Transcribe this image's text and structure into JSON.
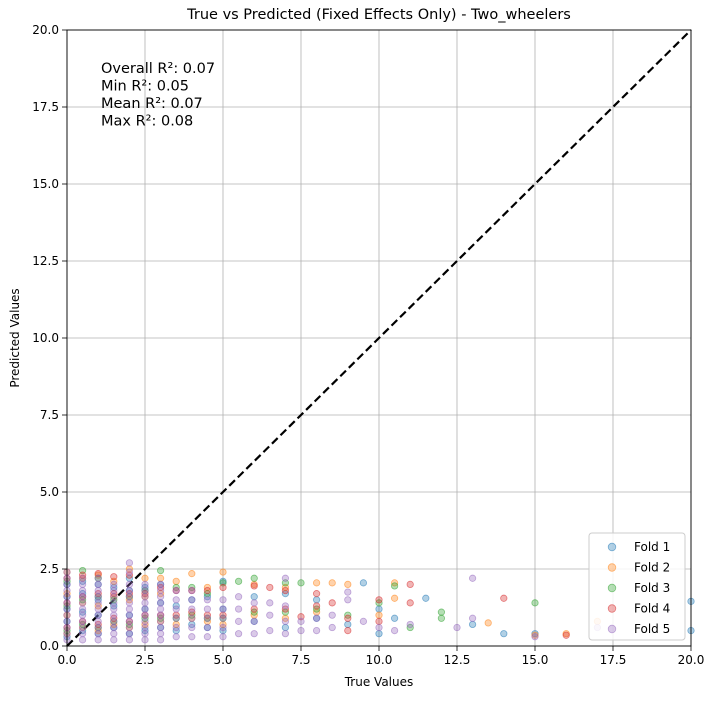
{
  "chart_data": {
    "type": "scatter",
    "title": "True vs Predicted (Fixed Effects Only) - Two_wheelers",
    "xlabel": "True Values",
    "ylabel": "Predicted Values",
    "xlim": [
      0,
      20
    ],
    "ylim": [
      0,
      20
    ],
    "xticks": [
      0.0,
      2.5,
      5.0,
      7.5,
      10.0,
      12.5,
      15.0,
      17.5,
      20.0
    ],
    "yticks": [
      0.0,
      2.5,
      5.0,
      7.5,
      10.0,
      12.5,
      15.0,
      17.5,
      20.0
    ],
    "xtick_labels": [
      "0.0",
      "2.5",
      "5.0",
      "7.5",
      "10.0",
      "12.5",
      "15.0",
      "17.5",
      "20.0"
    ],
    "ytick_labels": [
      "0.0",
      "2.5",
      "5.0",
      "7.5",
      "10.0",
      "12.5",
      "15.0",
      "17.5",
      "20.0"
    ],
    "grid": true,
    "legend_position": "bottom-right",
    "reference_line": {
      "from": [
        0,
        0
      ],
      "to": [
        20,
        20
      ],
      "style": "dashed",
      "color": "#000000"
    },
    "annotations": [
      "Overall R²: 0.07",
      "Min R²: 0.05",
      "Mean R²: 0.07",
      "Max R²: 0.08"
    ],
    "series": [
      {
        "name": "Fold 1",
        "color": "#1f77b4",
        "points": [
          [
            0,
            0.3
          ],
          [
            0,
            0.8
          ],
          [
            0,
            1.2
          ],
          [
            0,
            1.6
          ],
          [
            0,
            2.0
          ],
          [
            0.5,
            0.5
          ],
          [
            0.5,
            1.1
          ],
          [
            0.5,
            1.7
          ],
          [
            0.5,
            2.1
          ],
          [
            1.0,
            0.4
          ],
          [
            1.0,
            1.0
          ],
          [
            1.0,
            1.5
          ],
          [
            1.0,
            2.0
          ],
          [
            1.5,
            0.6
          ],
          [
            1.5,
            1.3
          ],
          [
            1.5,
            1.9
          ],
          [
            2.0,
            0.4
          ],
          [
            2.0,
            1.0
          ],
          [
            2.0,
            1.8
          ],
          [
            2.0,
            2.2
          ],
          [
            2.5,
            0.5
          ],
          [
            2.5,
            1.2
          ],
          [
            2.5,
            1.9
          ],
          [
            3.0,
            0.6
          ],
          [
            3.0,
            1.4
          ],
          [
            3.0,
            2.0
          ],
          [
            3.5,
            0.5
          ],
          [
            3.5,
            1.3
          ],
          [
            4.0,
            0.7
          ],
          [
            4.0,
            1.5
          ],
          [
            4.5,
            0.6
          ],
          [
            4.5,
            1.6
          ],
          [
            5.0,
            0.5
          ],
          [
            5.0,
            1.2
          ],
          [
            5.0,
            2.1
          ],
          [
            6.0,
            0.8
          ],
          [
            6.0,
            1.6
          ],
          [
            7.0,
            0.6
          ],
          [
            7.0,
            1.7
          ],
          [
            8.0,
            0.9
          ],
          [
            8.0,
            1.5
          ],
          [
            9.0,
            0.7
          ],
          [
            9.5,
            2.05
          ],
          [
            10.0,
            0.4
          ],
          [
            10.0,
            1.2
          ],
          [
            10.5,
            0.9
          ],
          [
            11.5,
            1.55
          ],
          [
            13.0,
            0.7
          ],
          [
            14.0,
            0.4
          ],
          [
            15.0,
            0.4
          ],
          [
            20.0,
            1.45
          ],
          [
            20.0,
            0.5
          ]
        ]
      },
      {
        "name": "Fold 2",
        "color": "#ff7f0e",
        "points": [
          [
            0,
            0.4
          ],
          [
            0,
            1.0
          ],
          [
            0,
            1.7
          ],
          [
            0,
            2.4
          ],
          [
            0.5,
            0.6
          ],
          [
            0.5,
            1.4
          ],
          [
            0.5,
            2.2
          ],
          [
            1.0,
            0.5
          ],
          [
            1.0,
            1.3
          ],
          [
            1.0,
            2.3
          ],
          [
            1.5,
            0.7
          ],
          [
            1.5,
            1.6
          ],
          [
            1.5,
            2.1
          ],
          [
            2.0,
            0.6
          ],
          [
            2.0,
            1.5
          ],
          [
            2.0,
            2.5
          ],
          [
            2.5,
            0.7
          ],
          [
            2.5,
            1.6
          ],
          [
            2.5,
            2.2
          ],
          [
            3.0,
            0.8
          ],
          [
            3.0,
            1.7
          ],
          [
            3.0,
            2.2
          ],
          [
            3.5,
            0.7
          ],
          [
            3.5,
            2.1
          ],
          [
            4.0,
            0.9
          ],
          [
            4.0,
            2.35
          ],
          [
            4.5,
            0.8
          ],
          [
            4.5,
            1.9
          ],
          [
            5.0,
            0.7
          ],
          [
            5.0,
            2.4
          ],
          [
            6.0,
            1.0
          ],
          [
            6.0,
            2.0
          ],
          [
            7.0,
            0.9
          ],
          [
            7.0,
            1.9
          ],
          [
            8.0,
            1.1
          ],
          [
            8.0,
            2.05
          ],
          [
            8.5,
            2.05
          ],
          [
            9.0,
            2.0
          ],
          [
            10.0,
            1.0
          ],
          [
            10.5,
            2.05
          ],
          [
            10.5,
            1.55
          ],
          [
            13.5,
            0.75
          ],
          [
            15.0,
            0.35
          ],
          [
            16.0,
            0.4
          ],
          [
            17.0,
            0.8
          ]
        ]
      },
      {
        "name": "Fold 3",
        "color": "#2ca02c",
        "points": [
          [
            0,
            0.5
          ],
          [
            0,
            1.3
          ],
          [
            0,
            2.1
          ],
          [
            0.5,
            0.7
          ],
          [
            0.5,
            1.5
          ],
          [
            0.5,
            2.45
          ],
          [
            1.0,
            0.6
          ],
          [
            1.0,
            1.6
          ],
          [
            1.0,
            2.2
          ],
          [
            1.5,
            0.8
          ],
          [
            1.5,
            1.5
          ],
          [
            2.0,
            0.7
          ],
          [
            2.0,
            1.6
          ],
          [
            2.5,
            0.9
          ],
          [
            2.5,
            1.8
          ],
          [
            3.0,
            0.9
          ],
          [
            3.0,
            2.45
          ],
          [
            3.5,
            0.9
          ],
          [
            3.5,
            1.9
          ],
          [
            4.0,
            1.0
          ],
          [
            4.0,
            1.9
          ],
          [
            4.5,
            0.9
          ],
          [
            4.5,
            1.7
          ],
          [
            5.0,
            0.9
          ],
          [
            5.0,
            2.05
          ],
          [
            5.5,
            2.1
          ],
          [
            6.0,
            1.1
          ],
          [
            6.0,
            2.2
          ],
          [
            7.0,
            1.1
          ],
          [
            7.0,
            2.05
          ],
          [
            7.5,
            2.05
          ],
          [
            8.0,
            1.2
          ],
          [
            9.0,
            1.0
          ],
          [
            10.0,
            1.4
          ],
          [
            10.5,
            1.95
          ],
          [
            11.0,
            0.6
          ],
          [
            12.0,
            1.1
          ],
          [
            12.0,
            0.9
          ],
          [
            15.0,
            1.4
          ]
        ]
      },
      {
        "name": "Fold 4",
        "color": "#d62728",
        "points": [
          [
            0,
            0.6
          ],
          [
            0,
            1.4
          ],
          [
            0,
            2.2
          ],
          [
            0.5,
            0.8
          ],
          [
            0.5,
            1.6
          ],
          [
            0.5,
            2.3
          ],
          [
            1.0,
            0.7
          ],
          [
            1.0,
            1.7
          ],
          [
            1.0,
            2.35
          ],
          [
            1.5,
            0.9
          ],
          [
            1.5,
            1.7
          ],
          [
            1.5,
            2.25
          ],
          [
            2.0,
            0.8
          ],
          [
            2.0,
            1.7
          ],
          [
            2.0,
            2.3
          ],
          [
            2.5,
            1.0
          ],
          [
            2.5,
            1.7
          ],
          [
            3.0,
            1.0
          ],
          [
            3.0,
            1.9
          ],
          [
            3.5,
            1.0
          ],
          [
            3.5,
            1.8
          ],
          [
            4.0,
            1.1
          ],
          [
            4.0,
            1.8
          ],
          [
            4.5,
            1.0
          ],
          [
            4.5,
            1.8
          ],
          [
            5.0,
            1.0
          ],
          [
            5.0,
            1.9
          ],
          [
            6.0,
            1.2
          ],
          [
            6.0,
            1.95
          ],
          [
            6.5,
            1.9
          ],
          [
            7.0,
            1.2
          ],
          [
            7.0,
            1.8
          ],
          [
            7.5,
            0.95
          ],
          [
            8.0,
            1.3
          ],
          [
            8.0,
            1.7
          ],
          [
            8.5,
            1.4
          ],
          [
            9.0,
            0.9
          ],
          [
            9.0,
            0.5
          ],
          [
            10.0,
            1.5
          ],
          [
            10.0,
            0.8
          ],
          [
            11.0,
            2.0
          ],
          [
            11.0,
            1.4
          ],
          [
            14.0,
            1.55
          ],
          [
            16.0,
            0.35
          ]
        ]
      },
      {
        "name": "Fold 5",
        "color": "#9467bd",
        "points": [
          [
            0,
            0.2
          ],
          [
            0,
            0.4
          ],
          [
            0,
            0.6
          ],
          [
            0,
            0.8
          ],
          [
            0,
            1.0
          ],
          [
            0,
            1.2
          ],
          [
            0,
            1.4
          ],
          [
            0,
            1.6
          ],
          [
            0,
            1.8
          ],
          [
            0,
            2.0
          ],
          [
            0,
            2.2
          ],
          [
            0,
            2.4
          ],
          [
            0.5,
            0.2
          ],
          [
            0.5,
            0.4
          ],
          [
            0.5,
            0.6
          ],
          [
            0.5,
            0.8
          ],
          [
            0.5,
            1.0
          ],
          [
            0.5,
            1.2
          ],
          [
            0.5,
            1.4
          ],
          [
            0.5,
            1.6
          ],
          [
            0.5,
            1.8
          ],
          [
            0.5,
            2.0
          ],
          [
            0.5,
            2.2
          ],
          [
            1.0,
            0.2
          ],
          [
            1.0,
            0.4
          ],
          [
            1.0,
            0.6
          ],
          [
            1.0,
            0.8
          ],
          [
            1.0,
            1.0
          ],
          [
            1.0,
            1.2
          ],
          [
            1.0,
            1.4
          ],
          [
            1.0,
            1.6
          ],
          [
            1.0,
            1.8
          ],
          [
            1.0,
            2.0
          ],
          [
            1.0,
            2.2
          ],
          [
            1.5,
            0.2
          ],
          [
            1.5,
            0.4
          ],
          [
            1.5,
            0.6
          ],
          [
            1.5,
            0.8
          ],
          [
            1.5,
            1.0
          ],
          [
            1.5,
            1.2
          ],
          [
            1.5,
            1.4
          ],
          [
            1.5,
            1.6
          ],
          [
            1.5,
            1.8
          ],
          [
            1.5,
            2.0
          ],
          [
            2.0,
            0.2
          ],
          [
            2.0,
            0.4
          ],
          [
            2.0,
            0.6
          ],
          [
            2.0,
            0.8
          ],
          [
            2.0,
            1.0
          ],
          [
            2.0,
            1.2
          ],
          [
            2.0,
            1.4
          ],
          [
            2.0,
            1.6
          ],
          [
            2.0,
            1.8
          ],
          [
            2.0,
            2.0
          ],
          [
            2.0,
            2.4
          ],
          [
            2.0,
            2.7
          ],
          [
            2.5,
            0.2
          ],
          [
            2.5,
            0.4
          ],
          [
            2.5,
            0.6
          ],
          [
            2.5,
            0.8
          ],
          [
            2.5,
            1.0
          ],
          [
            2.5,
            1.2
          ],
          [
            2.5,
            1.4
          ],
          [
            2.5,
            1.6
          ],
          [
            2.5,
            1.8
          ],
          [
            2.5,
            2.0
          ],
          [
            3.0,
            0.2
          ],
          [
            3.0,
            0.4
          ],
          [
            3.0,
            0.6
          ],
          [
            3.0,
            0.8
          ],
          [
            3.0,
            1.0
          ],
          [
            3.0,
            1.2
          ],
          [
            3.0,
            1.4
          ],
          [
            3.0,
            1.6
          ],
          [
            3.0,
            1.8
          ],
          [
            3.0,
            2.0
          ],
          [
            3.5,
            0.3
          ],
          [
            3.5,
            0.6
          ],
          [
            3.5,
            0.9
          ],
          [
            3.5,
            1.2
          ],
          [
            3.5,
            1.5
          ],
          [
            3.5,
            1.8
          ],
          [
            4.0,
            0.3
          ],
          [
            4.0,
            0.6
          ],
          [
            4.0,
            0.9
          ],
          [
            4.0,
            1.2
          ],
          [
            4.0,
            1.5
          ],
          [
            4.0,
            1.8
          ],
          [
            4.5,
            0.3
          ],
          [
            4.5,
            0.6
          ],
          [
            4.5,
            0.9
          ],
          [
            4.5,
            1.2
          ],
          [
            4.5,
            1.5
          ],
          [
            5.0,
            0.3
          ],
          [
            5.0,
            0.6
          ],
          [
            5.0,
            0.9
          ],
          [
            5.0,
            1.2
          ],
          [
            5.0,
            1.5
          ],
          [
            5.5,
            0.4
          ],
          [
            5.5,
            0.8
          ],
          [
            5.5,
            1.2
          ],
          [
            5.5,
            1.6
          ],
          [
            6.0,
            0.4
          ],
          [
            6.0,
            0.8
          ],
          [
            6.0,
            1.4
          ],
          [
            6.5,
            0.5
          ],
          [
            6.5,
            1.0
          ],
          [
            6.5,
            1.4
          ],
          [
            7.0,
            0.4
          ],
          [
            7.0,
            0.8
          ],
          [
            7.0,
            1.3
          ],
          [
            7.0,
            2.2
          ],
          [
            7.5,
            0.5
          ],
          [
            7.5,
            0.8
          ],
          [
            8.0,
            0.5
          ],
          [
            8.0,
            0.9
          ],
          [
            8.5,
            0.6
          ],
          [
            8.5,
            1.0
          ],
          [
            9.0,
            1.5
          ],
          [
            9.0,
            1.75
          ],
          [
            9.5,
            0.8
          ],
          [
            10.0,
            0.6
          ],
          [
            10.5,
            0.5
          ],
          [
            11.0,
            0.7
          ],
          [
            12.5,
            0.6
          ],
          [
            13.0,
            2.2
          ],
          [
            13.0,
            0.9
          ],
          [
            15.0,
            0.3
          ],
          [
            17.0,
            0.6
          ]
        ]
      }
    ]
  }
}
